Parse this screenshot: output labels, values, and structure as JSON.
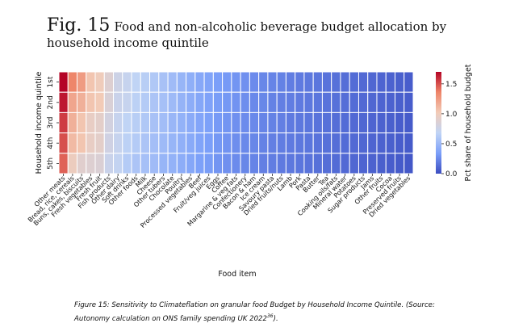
{
  "figure": {
    "number": "Fig. 15",
    "title": "Food and non-alcoholic beverage budget allocation by household income quintile",
    "caption_main": "Figure 15: Sensitivity to Climateflation on granular food Budget by Household Income Quintile. (Source: Autonomy calculation on ONS family spending  UK 2022",
    "caption_sup": "36",
    "caption_end": ")."
  },
  "chart_data": {
    "type": "heatmap",
    "xlabel": "Food item",
    "ylabel": "Household income quintile",
    "colorbar_label": "Pct share of household budget",
    "colorbar_range": [
      0.0,
      1.7
    ],
    "colorbar_ticks": [
      "0.0",
      "0.5",
      "1.0",
      "1.5"
    ],
    "colorbar_tick_values": [
      0.0,
      0.5,
      1.0,
      1.5
    ],
    "colormap": [
      "#3b4cc0",
      "#7b9ff9",
      "#c0d4f5",
      "#f2cbb7",
      "#ee8468",
      "#b40426"
    ],
    "rows": [
      "1st",
      "2nd",
      "3rd",
      "4th",
      "5th"
    ],
    "columns": [
      "Other meats",
      "Bread, rice, cereals",
      "Buns, cakes, biscuits",
      "Fresh vegetables",
      "Fresh fruit",
      "Fish products",
      "Other dairy",
      "Soft drinks",
      "Other foods",
      "Milk",
      "Cheese",
      "Other tubers",
      "Chocolate",
      "Poultry",
      "Processed vegetables",
      "Beef",
      "Fruit/veg juices",
      "Eggs",
      "Coffee",
      "Margarine & veg fats",
      "Confectionery",
      "Bacon & ham",
      "Ice cream",
      "Savoury pasta",
      "Dried fruits/nuts",
      "Lamb",
      "Pork",
      "Pasta",
      "Butter",
      "Tea",
      "Cooking oils/fats",
      "Mineral water",
      "Potatoes",
      "Sugar products",
      "Jams",
      "Other fruits",
      "Cocoa",
      "Preserved fruits",
      "Dried vegetables"
    ],
    "values": [
      [
        1.7,
        1.35,
        1.25,
        1.05,
        1.0,
        0.88,
        0.76,
        0.72,
        0.68,
        0.64,
        0.6,
        0.56,
        0.52,
        0.48,
        0.44,
        0.4,
        0.37,
        0.34,
        0.32,
        0.3,
        0.28,
        0.26,
        0.24,
        0.23,
        0.22,
        0.2,
        0.19,
        0.18,
        0.17,
        0.16,
        0.15,
        0.14,
        0.13,
        0.12,
        0.11,
        0.1,
        0.09,
        0.08,
        0.07
      ],
      [
        1.65,
        1.2,
        1.15,
        1.05,
        1.02,
        0.85,
        0.74,
        0.72,
        0.66,
        0.62,
        0.58,
        0.55,
        0.51,
        0.47,
        0.43,
        0.39,
        0.36,
        0.33,
        0.31,
        0.29,
        0.27,
        0.25,
        0.24,
        0.22,
        0.21,
        0.2,
        0.19,
        0.18,
        0.17,
        0.16,
        0.15,
        0.14,
        0.13,
        0.12,
        0.11,
        0.1,
        0.09,
        0.08,
        0.07
      ],
      [
        1.55,
        1.15,
        1.05,
        0.95,
        0.92,
        0.8,
        0.72,
        0.68,
        0.64,
        0.6,
        0.56,
        0.53,
        0.49,
        0.46,
        0.42,
        0.38,
        0.35,
        0.32,
        0.3,
        0.28,
        0.26,
        0.25,
        0.23,
        0.22,
        0.21,
        0.19,
        0.18,
        0.17,
        0.16,
        0.15,
        0.14,
        0.13,
        0.12,
        0.11,
        0.1,
        0.09,
        0.08,
        0.07,
        0.06
      ],
      [
        1.5,
        1.1,
        1.05,
        0.95,
        0.92,
        0.78,
        0.72,
        0.66,
        0.62,
        0.58,
        0.54,
        0.51,
        0.48,
        0.45,
        0.41,
        0.37,
        0.34,
        0.31,
        0.29,
        0.27,
        0.25,
        0.24,
        0.22,
        0.21,
        0.2,
        0.19,
        0.18,
        0.17,
        0.16,
        0.15,
        0.14,
        0.13,
        0.12,
        0.11,
        0.1,
        0.09,
        0.08,
        0.07,
        0.06
      ],
      [
        1.45,
        0.98,
        0.9,
        0.88,
        0.86,
        0.74,
        0.7,
        0.62,
        0.58,
        0.55,
        0.52,
        0.48,
        0.46,
        0.43,
        0.39,
        0.35,
        0.33,
        0.3,
        0.28,
        0.26,
        0.24,
        0.23,
        0.21,
        0.2,
        0.19,
        0.18,
        0.17,
        0.16,
        0.15,
        0.14,
        0.13,
        0.12,
        0.11,
        0.1,
        0.09,
        0.08,
        0.07,
        0.06,
        0.05
      ]
    ]
  }
}
